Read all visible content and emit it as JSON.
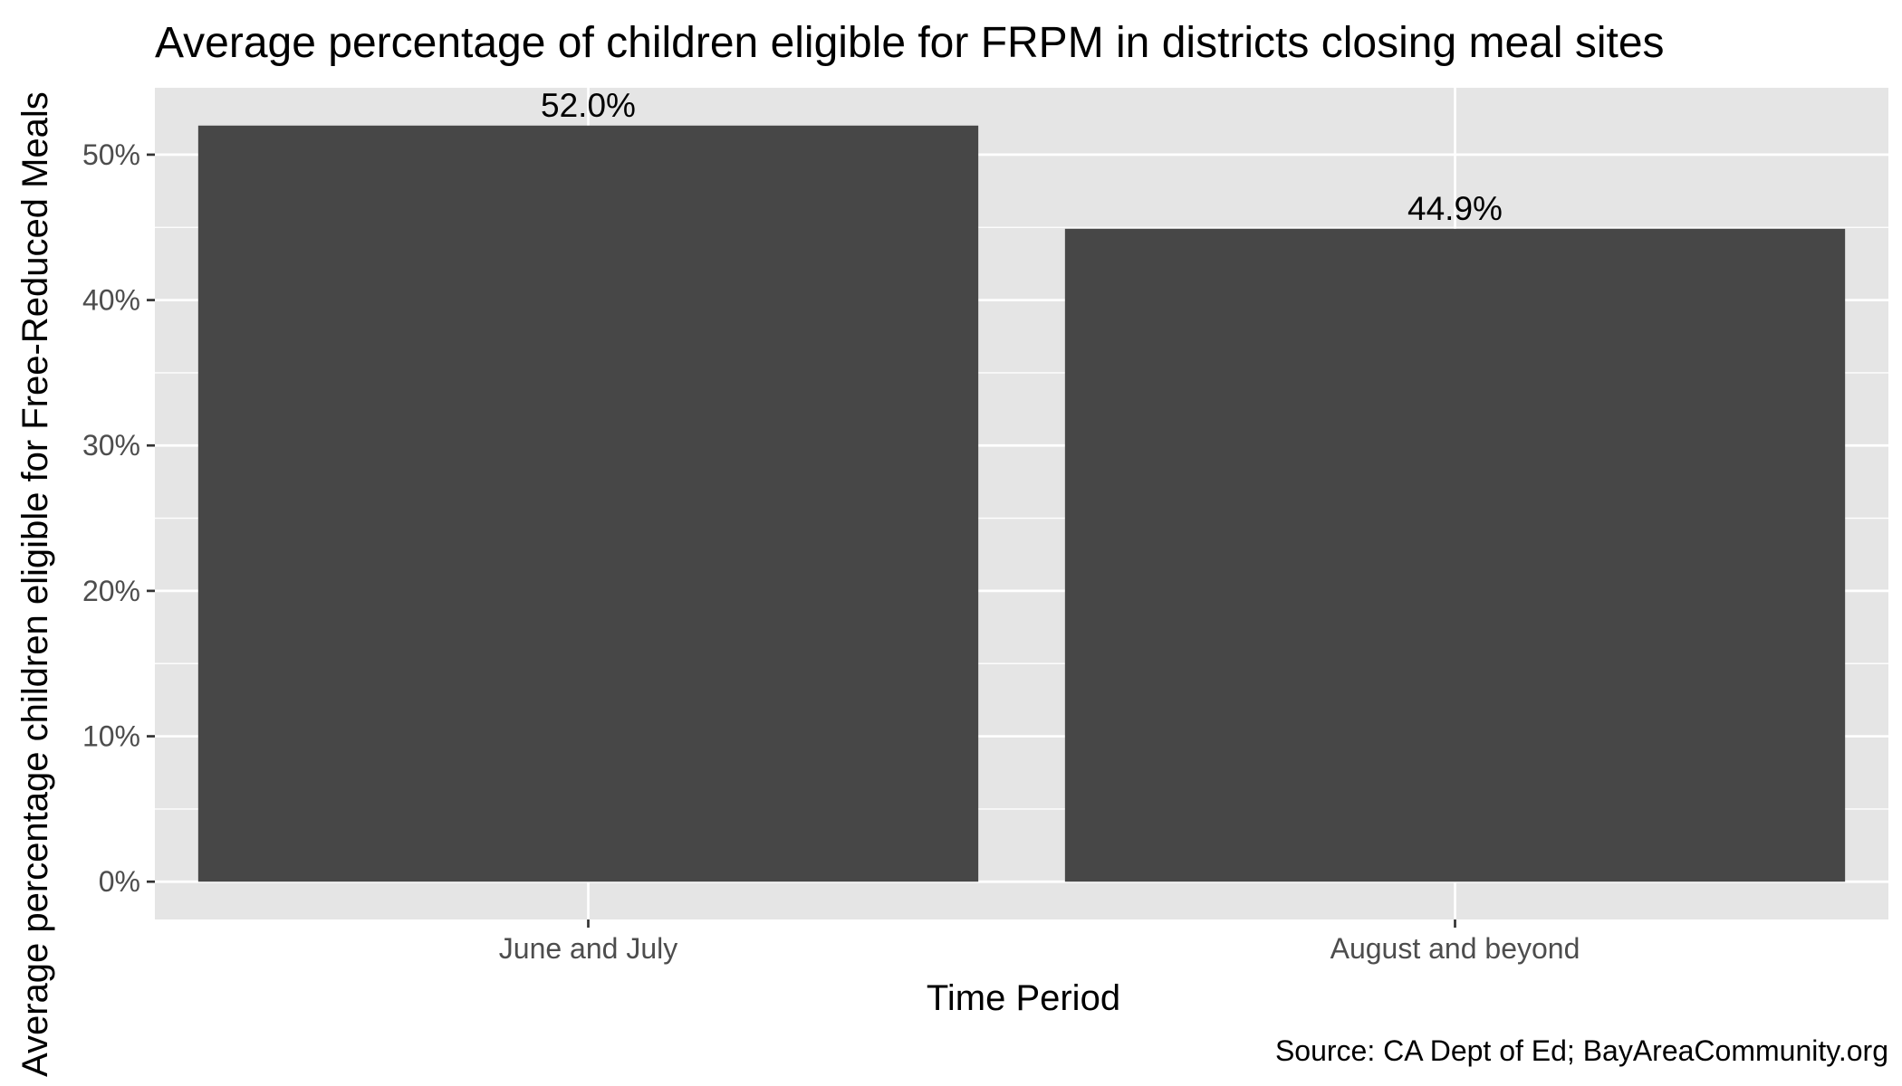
{
  "chart_data": {
    "type": "bar",
    "title": "Average percentage of children eligible for FRPM in districts closing meal sites",
    "xlabel": "Time Period",
    "ylabel": "Average percentage children eligible for Free-Reduced Meals",
    "caption": "Source: CA Dept of Ed; BayAreaCommunity.org",
    "categories": [
      "June and July",
      "August and beyond"
    ],
    "values": [
      52.0,
      44.9
    ],
    "value_labels": [
      "52.0%",
      "44.9%"
    ],
    "ylim": [
      -2.6,
      54.6
    ],
    "yticks": [
      0,
      10,
      20,
      30,
      40,
      50
    ],
    "ytick_labels": [
      "0%",
      "10%",
      "20%",
      "30%",
      "40%",
      "50%"
    ],
    "grid": true,
    "legend": "none",
    "colors": {
      "panel": "#e5e5e5",
      "bar": "#474747",
      "grid": "#ffffff"
    }
  }
}
